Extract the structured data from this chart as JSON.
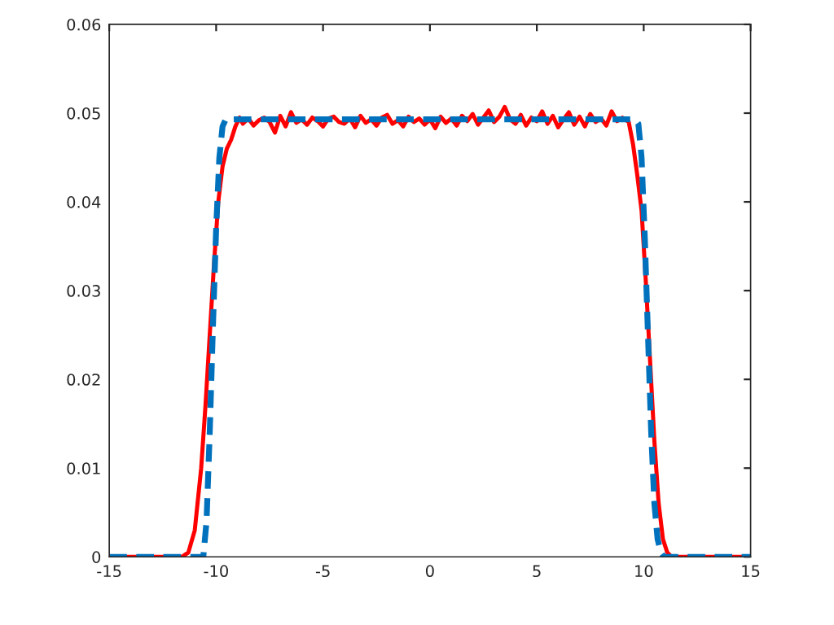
{
  "chart_data": {
    "type": "line",
    "xlim": [
      -15,
      15
    ],
    "ylim": [
      0,
      0.06
    ],
    "xticks": [
      -15,
      -10,
      -5,
      0,
      5,
      10,
      15
    ],
    "yticks": [
      0,
      0.01,
      0.02,
      0.03,
      0.04,
      0.05,
      0.06
    ],
    "grid": false,
    "series": [
      {
        "color": "#ff0000",
        "line_style": "solid",
        "x": [
          -15,
          -11.6,
          -11.3,
          -11.0,
          -10.7,
          -10.5,
          -10.3,
          -10.1,
          -9.9,
          -9.7,
          -9.5,
          -9.3,
          -9.1,
          -8.9,
          -8.75,
          -8.5,
          -8.25,
          -8.0,
          -7.75,
          -7.5,
          -7.25,
          -7.0,
          -6.75,
          -6.5,
          -6.25,
          -6.0,
          -5.75,
          -5.5,
          -5.25,
          -5.0,
          -4.75,
          -4.5,
          -4.25,
          -4.0,
          -3.75,
          -3.5,
          -3.25,
          -3.0,
          -2.75,
          -2.5,
          -2.25,
          -2.0,
          -1.75,
          -1.5,
          -1.25,
          -1.0,
          -0.75,
          -0.5,
          -0.25,
          0.0,
          0.25,
          0.5,
          0.75,
          1.0,
          1.25,
          1.5,
          1.75,
          2.0,
          2.25,
          2.5,
          2.75,
          3.0,
          3.25,
          3.5,
          3.75,
          4.0,
          4.25,
          4.5,
          4.75,
          5.0,
          5.25,
          5.5,
          5.75,
          6.0,
          6.25,
          6.5,
          6.75,
          7.0,
          7.25,
          7.5,
          7.75,
          8.0,
          8.25,
          8.5,
          8.75,
          9.0,
          9.3,
          9.5,
          9.7,
          9.9,
          10.1,
          10.3,
          10.5,
          10.7,
          10.9,
          11.1,
          11.3,
          11.6,
          15
        ],
        "values": [
          0,
          0,
          0.0005,
          0.003,
          0.01,
          0.017,
          0.025,
          0.033,
          0.04,
          0.044,
          0.046,
          0.047,
          0.0485,
          0.0495,
          0.0488,
          0.0494,
          0.0486,
          0.0492,
          0.0495,
          0.049,
          0.0478,
          0.0497,
          0.0485,
          0.0501,
          0.0489,
          0.0493,
          0.0487,
          0.0495,
          0.0491,
          0.0485,
          0.0494,
          0.0496,
          0.049,
          0.0488,
          0.0494,
          0.0484,
          0.0497,
          0.0489,
          0.0493,
          0.0486,
          0.0495,
          0.0498,
          0.0488,
          0.0492,
          0.0485,
          0.0496,
          0.049,
          0.0494,
          0.0487,
          0.0493,
          0.0483,
          0.0496,
          0.0489,
          0.0494,
          0.0486,
          0.0497,
          0.0491,
          0.0499,
          0.0487,
          0.0495,
          0.0503,
          0.049,
          0.0496,
          0.0507,
          0.0493,
          0.0488,
          0.0498,
          0.0486,
          0.0495,
          0.0491,
          0.0502,
          0.0488,
          0.0497,
          0.0484,
          0.0493,
          0.0501,
          0.0487,
          0.0496,
          0.0485,
          0.0499,
          0.049,
          0.0494,
          0.0486,
          0.0502,
          0.0491,
          0.0495,
          0.049,
          0.0465,
          0.043,
          0.039,
          0.031,
          0.022,
          0.013,
          0.006,
          0.002,
          0.0005,
          0,
          0,
          0
        ]
      },
      {
        "color": "#0072bd",
        "line_style": "dashed",
        "x": [
          -15,
          -10.6,
          -10.45,
          -10.3,
          -10.15,
          -10.0,
          -9.85,
          -9.7,
          -9.55,
          9.6,
          9.75,
          9.9,
          10.05,
          10.2,
          10.35,
          10.5,
          10.65,
          10.8,
          10.95,
          15
        ],
        "values": [
          0,
          0,
          0.004,
          0.014,
          0.026,
          0.037,
          0.045,
          0.0485,
          0.0493,
          0.0493,
          0.0488,
          0.045,
          0.036,
          0.025,
          0.014,
          0.006,
          0.002,
          0.0005,
          0,
          0
        ]
      }
    ]
  }
}
